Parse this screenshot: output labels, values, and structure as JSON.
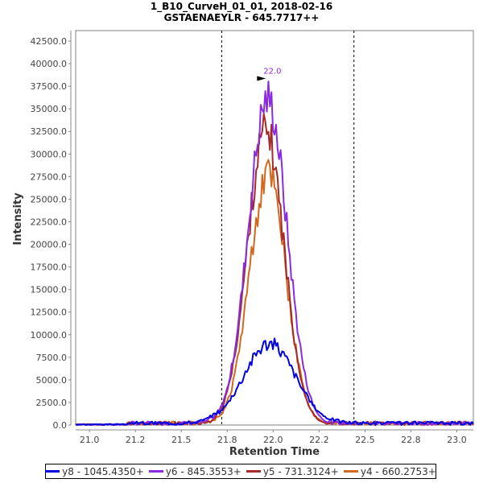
{
  "chart_data": {
    "type": "line",
    "title": "1_B10_CurveH_01_01, 2018-02-16",
    "subtitle": "GSTAENAEYLR - 645.7717++",
    "xlabel": "Retention Time",
    "ylabel": "Intensity",
    "xlim": [
      20.925,
      23.09
    ],
    "ylim": [
      0,
      43660
    ],
    "x_ticks": [
      21.0,
      21.25,
      21.5,
      21.75,
      22.0,
      22.25,
      22.5,
      22.75,
      23.0
    ],
    "x_tick_labels": [
      "21.0",
      "21.2",
      "21.5",
      "21.8",
      "22.0",
      "22.2",
      "22.5",
      "22.8",
      "23.0"
    ],
    "y_ticks": [
      0,
      2500,
      5000,
      7500,
      10000,
      12500,
      15000,
      17500,
      20000,
      22500,
      25000,
      27500,
      30000,
      32500,
      35000,
      37500,
      40000,
      42500
    ],
    "y_tick_labels": [
      "0.0",
      "2500.0",
      "5000.0",
      "7500.0",
      "10000.0",
      "12500.0",
      "15000.0",
      "17500.0",
      "20000.0",
      "22500.0",
      "25000.0",
      "27500.0",
      "30000.0",
      "32500.0",
      "35000.0",
      "37500.0",
      "40000.0",
      "42500.0"
    ],
    "grid": false,
    "legend_position": "bottom",
    "boundaries": [
      21.72,
      22.44
    ],
    "peak_annotation": {
      "x": 22.0,
      "label": "22.0",
      "y": 38000
    },
    "series": [
      {
        "name": "y8 - 1045.4350+",
        "color": "#0000e0",
        "peak_x": 21.98,
        "peak_y": 9000,
        "width": 0.14,
        "noise": 0.09,
        "seed": 3
      },
      {
        "name": "y6 - 845.3553+",
        "color": "#8a2be2",
        "peak_x": 21.97,
        "peak_y": 36000,
        "width": 0.105,
        "noise": 0.07,
        "seed": 7
      },
      {
        "name": "y5 - 731.3124+",
        "color": "#a52a2a",
        "peak_x": 21.96,
        "peak_y": 32500,
        "width": 0.1,
        "noise": 0.07,
        "seed": 11
      },
      {
        "name": "y4 - 660.2753+",
        "color": "#d2691e",
        "peak_x": 21.97,
        "peak_y": 27500,
        "width": 0.1,
        "noise": 0.08,
        "seed": 19
      }
    ]
  }
}
